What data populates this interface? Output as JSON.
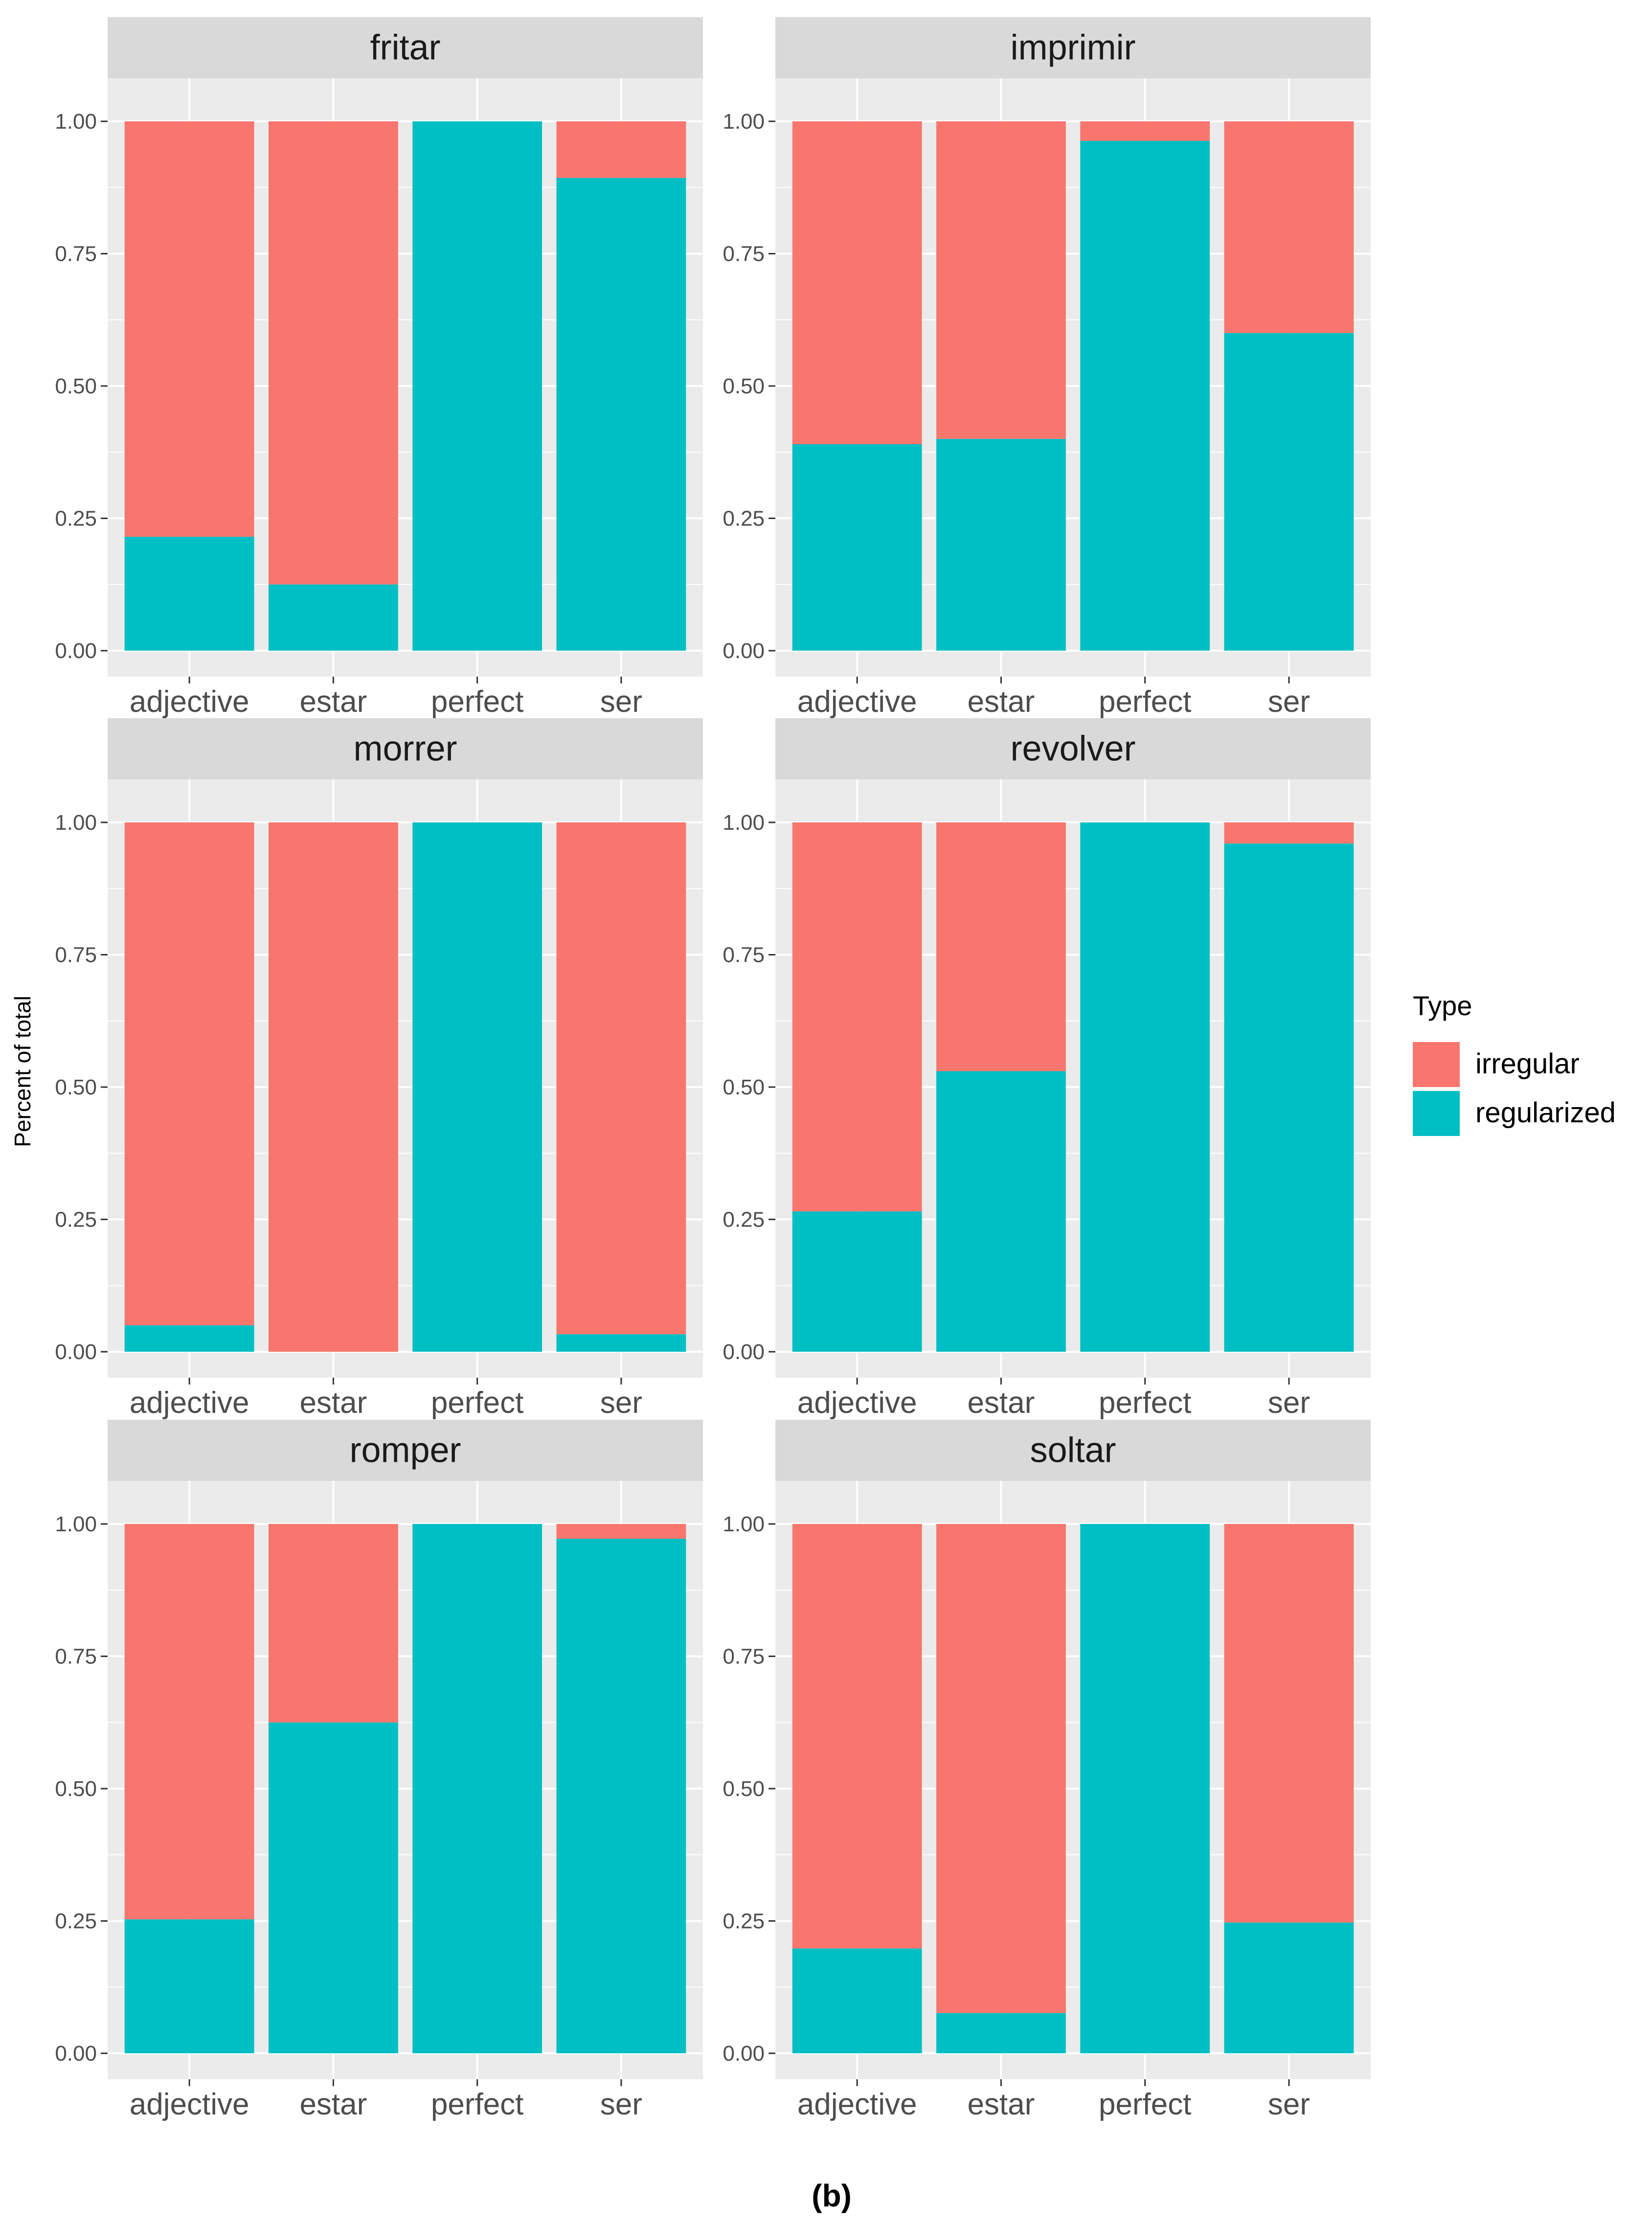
{
  "figure_label": "(b)",
  "y_axis_label": "Percent of total",
  "legend": {
    "title": "Type",
    "items": [
      {
        "label": "irregular",
        "color": "#F8766D"
      },
      {
        "label": "regularized",
        "color": "#00BFC4"
      }
    ]
  },
  "colors": {
    "panel_background": "#EBEBEB",
    "strip_background": "#D9D9D9",
    "grid": "#FFFFFF",
    "tick_text": "#4D4D4D"
  },
  "chart_data": {
    "type": "bar",
    "stacked": true,
    "facet_by": "verb",
    "categories": [
      "adjective",
      "estar",
      "perfect",
      "ser"
    ],
    "ylim": [
      0,
      1
    ],
    "y_ticks": [
      "0.00",
      "0.25",
      "0.50",
      "0.75",
      "1.00"
    ],
    "xlabel": "",
    "ylabel": "Percent of total",
    "legend_position": "right",
    "panels": [
      {
        "title": "fritar",
        "regularized": [
          0.215,
          0.125,
          1.0,
          0.893
        ]
      },
      {
        "title": "imprimir",
        "regularized": [
          0.39,
          0.4,
          0.963,
          0.6
        ]
      },
      {
        "title": "morrer",
        "regularized": [
          0.05,
          0.0,
          1.0,
          0.033
        ]
      },
      {
        "title": "revolver",
        "regularized": [
          0.265,
          0.53,
          1.0,
          0.96
        ]
      },
      {
        "title": "romper",
        "regularized": [
          0.253,
          0.625,
          1.0,
          0.972
        ]
      },
      {
        "title": "soltar",
        "regularized": [
          0.198,
          0.076,
          1.0,
          0.247
        ]
      }
    ]
  }
}
